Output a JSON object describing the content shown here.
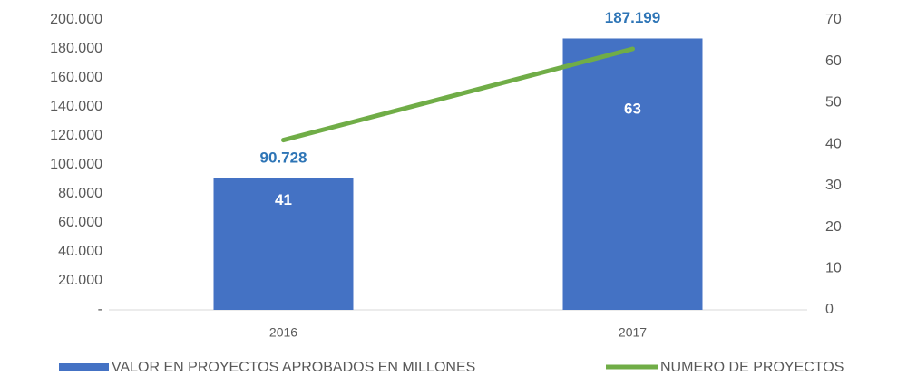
{
  "chart_data": {
    "type": "bar_line",
    "categories": [
      "2016",
      "2017"
    ],
    "series": [
      {
        "name": "VALOR EN PROYECTOS APROBADOS EN MILLONES",
        "type": "bar",
        "color": "#4472c4",
        "axis": "y",
        "values": [
          90728,
          187199
        ],
        "value_labels": [
          "90.728",
          "187.199"
        ]
      },
      {
        "name": "NUMERO DE PROYECTOS",
        "type": "line",
        "color": "#70ad47",
        "axis": "y2",
        "values": [
          41,
          63
        ]
      }
    ],
    "ylim": [
      0,
      200000
    ],
    "yticks": [
      {
        "value": 0,
        "label": "-"
      },
      {
        "value": 20000,
        "label": "20.000"
      },
      {
        "value": 40000,
        "label": "40.000"
      },
      {
        "value": 60000,
        "label": "60.000"
      },
      {
        "value": 80000,
        "label": "80.000"
      },
      {
        "value": 100000,
        "label": "100.000"
      },
      {
        "value": 120000,
        "label": "120.000"
      },
      {
        "value": 140000,
        "label": "140.000"
      },
      {
        "value": 160000,
        "label": "160.000"
      },
      {
        "value": 180000,
        "label": "180.000"
      },
      {
        "value": 200000,
        "label": "200.000"
      }
    ],
    "y2lim": [
      0,
      70
    ],
    "y2ticks": [
      0,
      10,
      20,
      30,
      40,
      50,
      60,
      70
    ],
    "legend": "bottom"
  }
}
